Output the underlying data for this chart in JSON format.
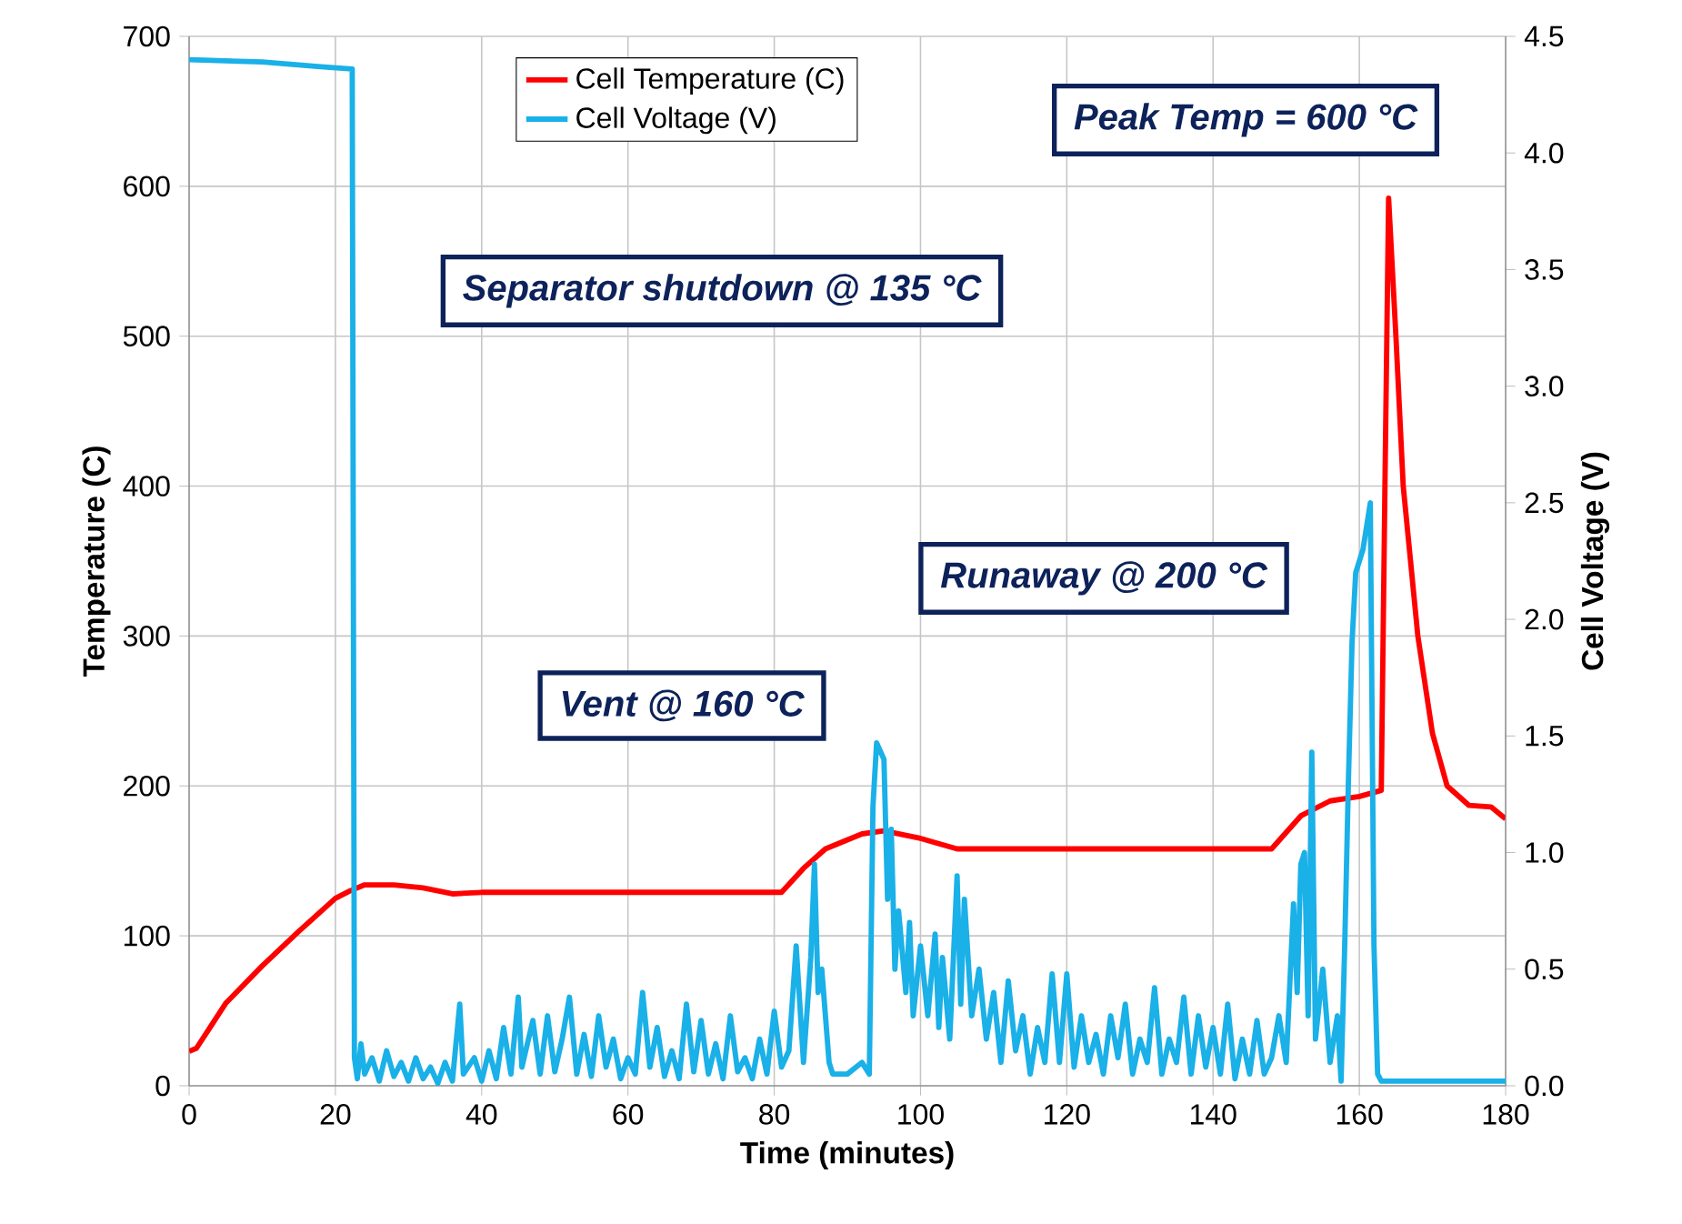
{
  "chart_data": {
    "type": "line",
    "xlabel": "Time (minutes)",
    "ylabel": "Temperature (C)",
    "y2label": "Cell Voltage (V)",
    "xlim": [
      0,
      180
    ],
    "xticks": [
      0,
      20,
      40,
      60,
      80,
      100,
      120,
      140,
      160,
      180
    ],
    "ylim": [
      0,
      700
    ],
    "yticks": [
      0,
      100,
      200,
      300,
      400,
      500,
      600,
      700
    ],
    "y2lim": [
      0,
      4.5
    ],
    "y2ticks": [
      {
        "value": 0,
        "label": "0.0"
      },
      {
        "value": 0.5,
        "label": "0.5"
      },
      {
        "value": 1,
        "label": "1.0"
      },
      {
        "value": 1.5,
        "label": "1.5"
      },
      {
        "value": 2,
        "label": "2.0"
      },
      {
        "value": 2.5,
        "label": "2.5"
      },
      {
        "value": 3,
        "label": "3.0"
      },
      {
        "value": 3.5,
        "label": "3.5"
      },
      {
        "value": 4,
        "label": "4.0"
      },
      {
        "value": 4.5,
        "label": "4.5"
      }
    ],
    "grid": true,
    "legend": "top",
    "line_style": "solid",
    "marker": "none",
    "annotations": [
      "Separator shutdown @ 135 °C",
      "Vent @ 160 °C",
      "Runaway @ 200 °C",
      "Peak Temp = 600 °C"
    ],
    "series": [
      {
        "name": "Cell Temperature (C)",
        "color": "#ff0000",
        "x": [
          0,
          1,
          3,
          5,
          10,
          15,
          20,
          22,
          24,
          28,
          32,
          36,
          40,
          60,
          81,
          84,
          87,
          92,
          95,
          100,
          105,
          110,
          130,
          148,
          152,
          156,
          160,
          163,
          163.5,
          164,
          165,
          166,
          168,
          170,
          172,
          175,
          178,
          180
        ],
        "values": [
          23,
          25,
          40,
          55,
          80,
          103,
          125,
          130,
          134,
          134,
          132,
          128,
          129,
          129,
          129,
          145,
          158,
          168,
          170,
          165,
          158,
          158,
          158,
          158,
          180,
          190,
          193,
          197,
          400,
          592,
          500,
          400,
          300,
          235,
          200,
          187,
          186,
          178
        ]
      },
      {
        "name": "Cell Voltage (V)",
        "color": "#1ab0e8",
        "axis": "y2",
        "x": [
          0,
          10,
          18,
          22.3,
          22.6,
          23,
          23.5,
          24,
          25,
          26,
          27,
          28,
          29,
          30,
          31,
          32,
          33,
          34,
          35,
          36,
          37,
          37.5,
          39,
          40,
          41,
          42,
          43,
          44,
          45,
          45.5,
          47,
          48,
          49,
          50,
          51,
          52,
          53,
          54,
          55,
          56,
          57,
          58,
          59,
          60,
          61,
          62,
          63,
          64,
          65,
          66,
          67,
          68,
          69,
          70,
          71,
          72,
          73,
          74,
          75,
          76,
          77,
          78,
          79,
          80,
          81,
          82,
          83,
          84,
          85,
          85.5,
          86,
          86.5,
          87.5,
          88,
          90,
          92,
          93,
          93.5,
          94,
          95,
          95.5,
          96,
          96.5,
          97,
          98,
          98.5,
          99,
          100,
          101,
          102,
          102.5,
          103,
          104,
          105,
          105.5,
          106,
          107,
          108,
          109,
          110,
          111,
          112,
          113,
          114,
          115,
          116,
          117,
          118,
          119,
          120,
          121,
          122,
          123,
          124,
          125,
          126,
          127,
          128,
          129,
          130,
          131,
          132,
          133,
          134,
          135,
          136,
          137,
          138,
          139,
          140,
          141,
          142,
          143,
          144,
          145,
          146,
          147,
          148,
          149,
          150,
          151,
          151.5,
          152,
          152.5,
          153,
          153.5,
          154,
          155,
          156,
          157,
          157.5,
          158,
          158.5,
          159,
          159.5,
          160.5,
          161.5,
          162,
          162.5,
          163,
          180
        ],
        "values": [
          4.4,
          4.39,
          4.37,
          4.36,
          0.12,
          0.03,
          0.18,
          0.05,
          0.12,
          0.02,
          0.15,
          0.04,
          0.1,
          0.02,
          0.12,
          0.03,
          0.08,
          0.01,
          0.1,
          0.02,
          0.35,
          0.05,
          0.12,
          0.02,
          0.15,
          0.03,
          0.25,
          0.05,
          0.38,
          0.08,
          0.28,
          0.05,
          0.3,
          0.06,
          0.2,
          0.38,
          0.05,
          0.22,
          0.04,
          0.3,
          0.08,
          0.2,
          0.03,
          0.12,
          0.05,
          0.4,
          0.08,
          0.25,
          0.04,
          0.15,
          0.03,
          0.35,
          0.06,
          0.28,
          0.05,
          0.18,
          0.03,
          0.3,
          0.06,
          0.12,
          0.03,
          0.2,
          0.05,
          0.32,
          0.08,
          0.15,
          0.6,
          0.1,
          0.55,
          0.95,
          0.4,
          0.5,
          0.1,
          0.05,
          0.05,
          0.1,
          0.05,
          1.2,
          1.47,
          1.4,
          0.8,
          1.1,
          0.5,
          0.75,
          0.4,
          0.7,
          0.3,
          0.6,
          0.3,
          0.65,
          0.25,
          0.55,
          0.2,
          0.9,
          0.35,
          0.8,
          0.3,
          0.5,
          0.2,
          0.4,
          0.1,
          0.45,
          0.15,
          0.3,
          0.05,
          0.25,
          0.1,
          0.48,
          0.1,
          0.48,
          0.08,
          0.3,
          0.1,
          0.22,
          0.05,
          0.3,
          0.12,
          0.35,
          0.05,
          0.2,
          0.1,
          0.42,
          0.05,
          0.2,
          0.1,
          0.38,
          0.05,
          0.3,
          0.08,
          0.25,
          0.05,
          0.35,
          0.03,
          0.2,
          0.05,
          0.28,
          0.05,
          0.12,
          0.3,
          0.1,
          0.78,
          0.4,
          0.95,
          1.0,
          0.3,
          1.43,
          0.2,
          0.5,
          0.1,
          0.3,
          0.02,
          0.6,
          1.3,
          1.9,
          2.2,
          2.3,
          2.5,
          0.6,
          0.05,
          0.02,
          0.02
        ]
      }
    ]
  }
}
